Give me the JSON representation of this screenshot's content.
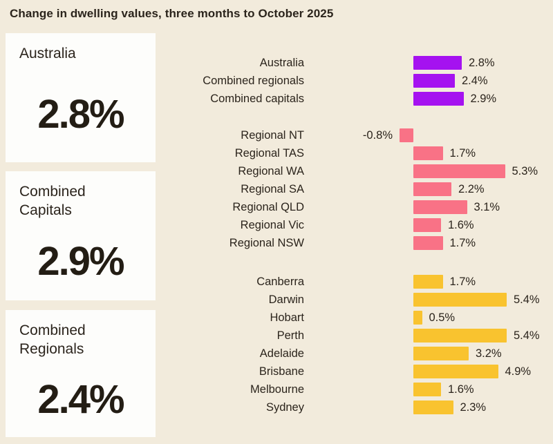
{
  "title": "Change in dwelling values, three months to October 2025",
  "summary_cards": [
    {
      "label": "Australia",
      "value": "2.8%"
    },
    {
      "label": "Combined Capitals",
      "value": "2.9%"
    },
    {
      "label": "Combined Regionals",
      "value": "2.4%"
    }
  ],
  "colors": {
    "background": "#F2EBDC",
    "card_background": "#FDFDFB",
    "text": "#2B241C",
    "national_purple": "#A512F0",
    "regional_pink": "#F97286",
    "capital_yellow": "#F9C32F"
  },
  "chart_data": {
    "type": "bar",
    "orientation": "horizontal",
    "unit": "%",
    "value_range": [
      -0.8,
      5.4
    ],
    "grid": false,
    "legend": false,
    "groups": [
      {
        "name": "national",
        "color": "#A512F0",
        "bars": [
          {
            "label": "Australia",
            "value": 2.8
          },
          {
            "label": "Combined regionals",
            "value": 2.4
          },
          {
            "label": "Combined capitals",
            "value": 2.9
          }
        ]
      },
      {
        "name": "regional",
        "color": "#F97286",
        "bars": [
          {
            "label": "Regional NT",
            "value": -0.8
          },
          {
            "label": "Regional TAS",
            "value": 1.7
          },
          {
            "label": "Regional WA",
            "value": 5.3
          },
          {
            "label": "Regional SA",
            "value": 2.2
          },
          {
            "label": "Regional QLD",
            "value": 3.1
          },
          {
            "label": "Regional Vic",
            "value": 1.6
          },
          {
            "label": "Regional NSW",
            "value": 1.7
          }
        ]
      },
      {
        "name": "capitals",
        "color": "#F9C32F",
        "bars": [
          {
            "label": "Canberra",
            "value": 1.7
          },
          {
            "label": "Darwin",
            "value": 5.4
          },
          {
            "label": "Hobart",
            "value": 0.5
          },
          {
            "label": "Perth",
            "value": 5.4
          },
          {
            "label": "Adelaide",
            "value": 3.2
          },
          {
            "label": "Brisbane",
            "value": 4.9
          },
          {
            "label": "Melbourne",
            "value": 1.6
          },
          {
            "label": "Sydney",
            "value": 2.3
          }
        ]
      }
    ]
  }
}
